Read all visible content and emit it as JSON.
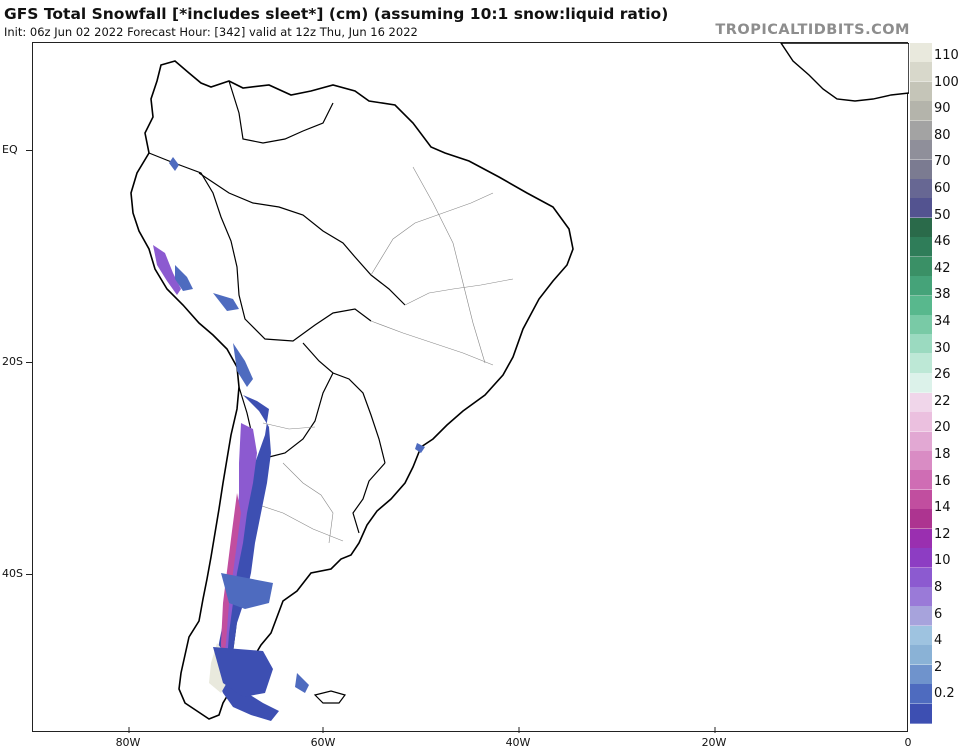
{
  "header": {
    "title": "GFS Total Snowfall [*includes sleet*] (cm) (assuming 10:1 snow:liquid ratio)",
    "subtitle": "Init: 06z Jun 02 2022   Forecast Hour: [342]   valid at 12z Thu, Jun 16 2022",
    "brand": "TROPICALTIDBITS.COM"
  },
  "axes": {
    "lat_labels": [
      "EQ",
      "20S",
      "40S"
    ],
    "lon_labels": [
      "80W",
      "60W",
      "40W",
      "20W",
      "0"
    ]
  },
  "legend": {
    "labels": [
      "110",
      "100",
      "90",
      "80",
      "70",
      "60",
      "50",
      "46",
      "42",
      "38",
      "34",
      "30",
      "26",
      "22",
      "20",
      "18",
      "16",
      "14",
      "12",
      "10",
      "8",
      "6",
      "4",
      "2",
      "0.2"
    ],
    "colors": [
      "#e9e9dd",
      "#d8d8cb",
      "#c5c5b8",
      "#b4b4ab",
      "#a3a3a3",
      "#8f8f9a",
      "#7b7b91",
      "#676793",
      "#535390",
      "#2a6a4a",
      "#2f7d59",
      "#3a9066",
      "#45a379",
      "#58b88d",
      "#79caa6",
      "#9bdac0",
      "#bde8d6",
      "#dcf2ea",
      "#f0d6ea",
      "#ebc0df",
      "#e2a8d3",
      "#d98cc4",
      "#cf6db4",
      "#c14e9f",
      "#ad3490",
      "#9a2fb0",
      "#8d3dc3",
      "#8c5ad0",
      "#9a7ad8",
      "#a7a3dc",
      "#9ec3e0",
      "#8ab2d6",
      "#6f93cc",
      "#4e6bbf",
      "#3d4fb2"
    ]
  },
  "map": {
    "land_color": "#ffffff",
    "coast_color": "#000000",
    "snow_colors": {
      "light": "#4e6bbf",
      "moderate": "#3d4fb2",
      "heavy": "#8c5ad0",
      "peak": "#c14e9f",
      "extreme": "#e9e9dd"
    }
  }
}
